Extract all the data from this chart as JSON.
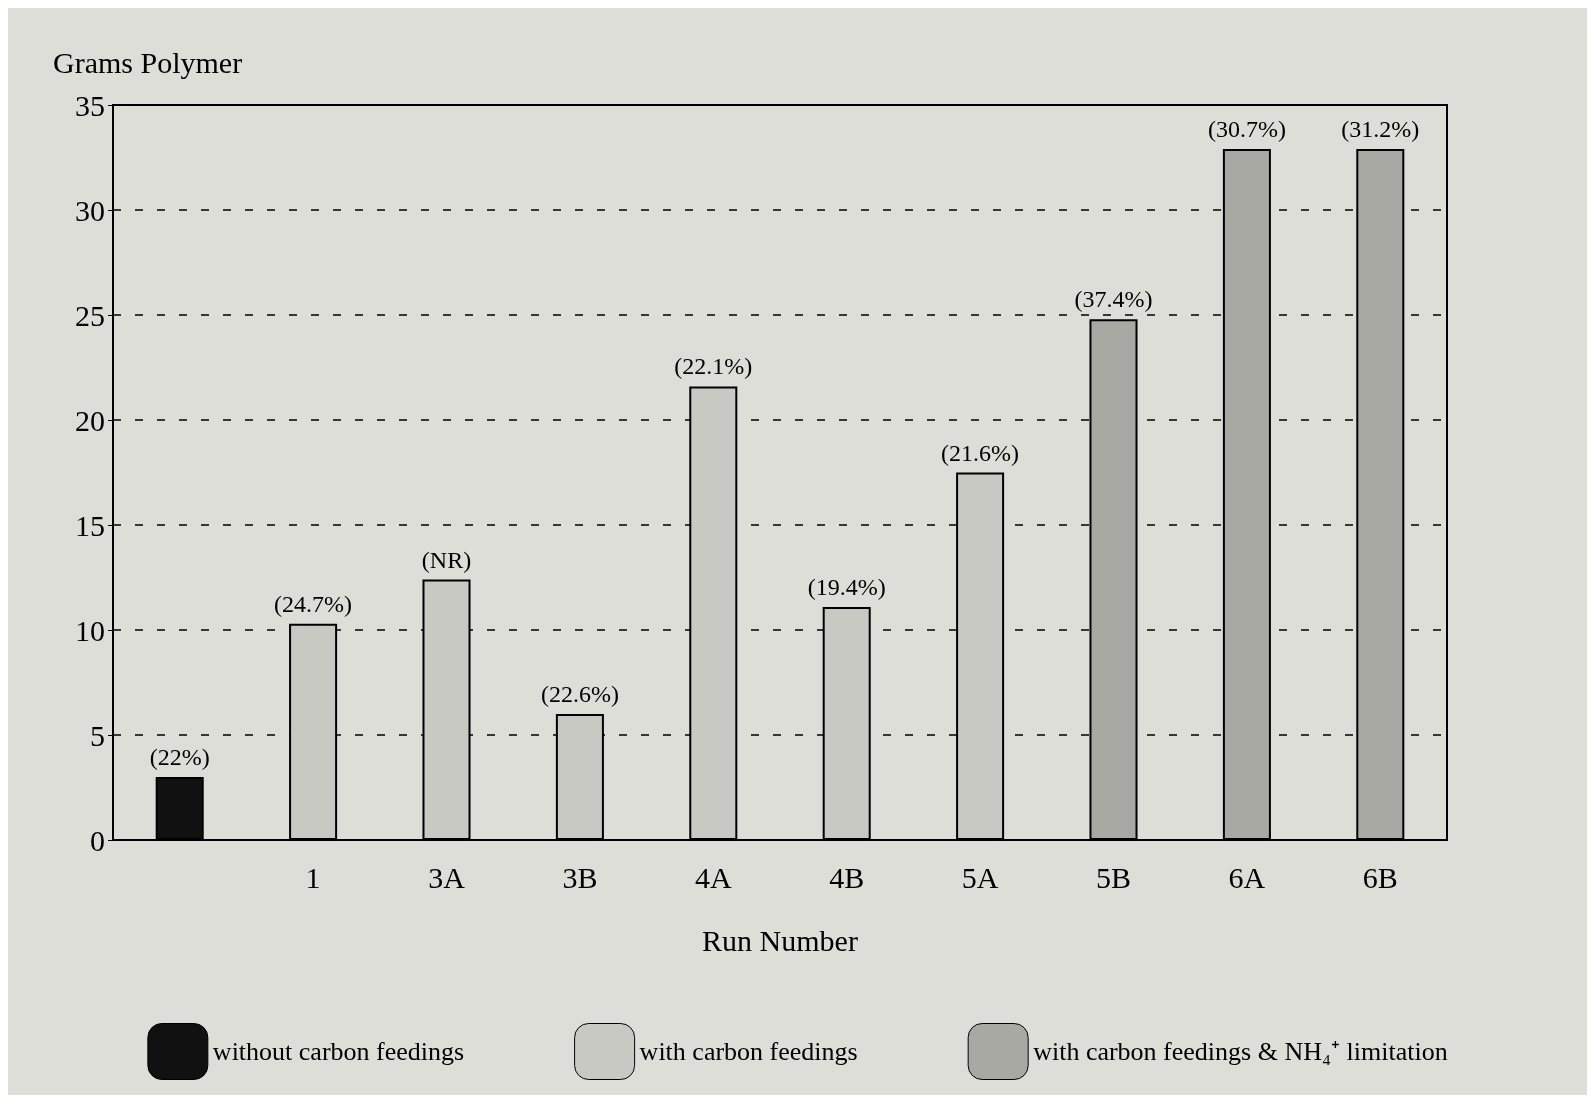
{
  "chart_data": {
    "type": "bar",
    "ylabel": "Grams Polymer",
    "xlabel": "Run Number",
    "categories": [
      null,
      "1",
      "3A",
      "3B",
      "4A",
      "4B",
      "5A",
      "5B",
      "6A",
      "6B"
    ],
    "stacked": true,
    "series": [
      {
        "name": "without carbon feedings",
        "color": "#111111",
        "values": [
          3.0,
          null,
          null,
          null,
          null,
          null,
          null,
          null,
          null,
          null
        ]
      },
      {
        "name": "with carbon feedings",
        "color": "#c9c9c4",
        "values": [
          null,
          10.3,
          12.4,
          6.0,
          21.6,
          11.1,
          17.5,
          null,
          null,
          null
        ]
      },
      {
        "name": "with carbon feedings & NH₄⁺ limitation",
        "color": "#a9a9a4",
        "values": [
          null,
          null,
          null,
          null,
          null,
          null,
          null,
          24.8,
          32.9,
          32.9
        ]
      }
    ],
    "annotations": [
      {
        "text": "(22%)",
        "y": 3.0
      },
      {
        "text": "(24.7%)",
        "x": "1",
        "y": 10.3
      },
      {
        "text": "(NR)",
        "x": "3A",
        "y": 12.4
      },
      {
        "text": "(22.6%)",
        "x": "3B",
        "y": 6.0
      },
      {
        "text": "(22.1%)",
        "x": "4A",
        "y": 21.6
      },
      {
        "text": "(19.4%)",
        "x": "4B",
        "y": 11.1
      },
      {
        "text": "(21.6%)",
        "x": "5A",
        "y": 17.5
      },
      {
        "text": "(37.4%)",
        "x": "5B",
        "y": 24.8
      },
      {
        "text": "(30.7%)",
        "x": "6A",
        "y": 32.9
      },
      {
        "text": "(31.2%)",
        "x": "6B",
        "y": 32.9
      }
    ],
    "ylim": [
      0,
      35
    ],
    "yticks": [
      0,
      5,
      10,
      15,
      20,
      25,
      30,
      35
    ],
    "grid": "y",
    "legend": "bottom"
  }
}
